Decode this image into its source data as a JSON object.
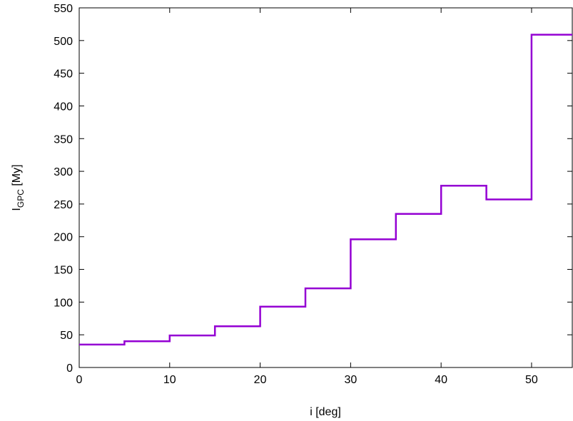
{
  "chart_data": {
    "type": "line",
    "step": true,
    "title": "",
    "xlabel": "i [deg]",
    "ylabel_main": "I",
    "ylabel_sub": "GPC",
    "ylabel_rest": " [My]",
    "xlim": [
      0,
      54.5
    ],
    "ylim": [
      0,
      550
    ],
    "xticks": [
      0,
      10,
      20,
      30,
      40,
      50
    ],
    "yticks": [
      0,
      50,
      100,
      150,
      200,
      250,
      300,
      350,
      400,
      450,
      500,
      550
    ],
    "grid": false,
    "line_color": "#9400d3",
    "series": [
      {
        "x": [
          0,
          5,
          10,
          15,
          20,
          25,
          30,
          35,
          40,
          45,
          50
        ],
        "values": [
          35,
          40,
          49,
          63,
          93,
          121,
          196,
          235,
          278,
          257,
          509
        ]
      }
    ]
  }
}
